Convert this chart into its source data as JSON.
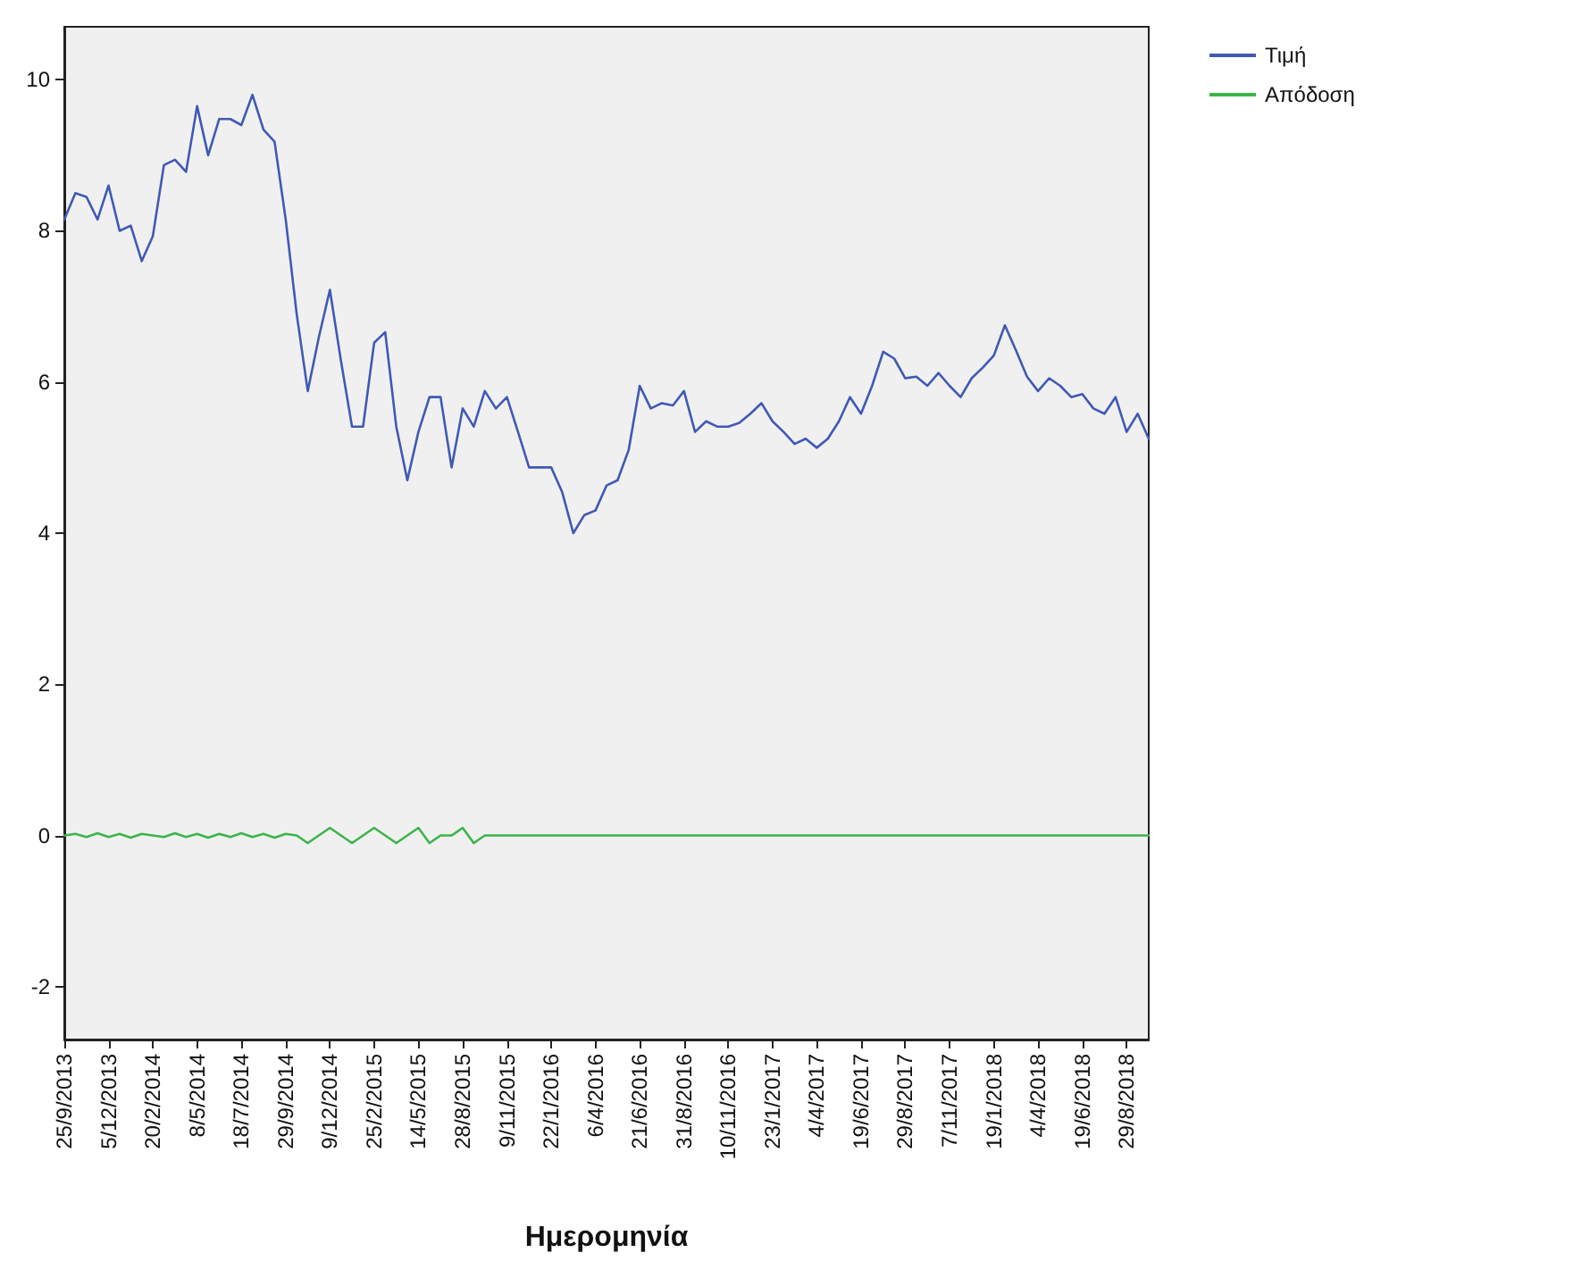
{
  "chart_data": {
    "type": "line",
    "xlabel": "Ημερομηνία",
    "categories": [
      "25/9/2013",
      null,
      null,
      null,
      "5/12/2013",
      null,
      null,
      null,
      "20/2/2014",
      null,
      null,
      null,
      "8/5/2014",
      null,
      null,
      null,
      "18/7/2014",
      null,
      null,
      null,
      "29/9/2014",
      null,
      null,
      null,
      "9/12/2014",
      null,
      null,
      null,
      "25/2/2015",
      null,
      null,
      null,
      "14/5/2015",
      null,
      null,
      null,
      "28/8/2015",
      null,
      null,
      null,
      "9/11/2015",
      null,
      null,
      null,
      "22/1/2016",
      null,
      null,
      null,
      "6/4/2016",
      null,
      null,
      null,
      "21/6/2016",
      null,
      null,
      null,
      "31/8/2016",
      null,
      null,
      null,
      "10/11/2016",
      null,
      null,
      null,
      "23/1/2017",
      null,
      null,
      null,
      "4/4/2017",
      null,
      null,
      null,
      "19/6/2017",
      null,
      null,
      null,
      "29/8/2017",
      null,
      null,
      null,
      "7/11/2017",
      null,
      null,
      null,
      "19/1/2018",
      null,
      null,
      null,
      "4/4/2018",
      null,
      null,
      null,
      "19/6/2018",
      null,
      null,
      null,
      "29/8/2018",
      null,
      null
    ],
    "series": [
      {
        "name": "Τιμή",
        "color": "#4059b5",
        "values": [
          8.15,
          8.5,
          8.45,
          8.15,
          8.6,
          8.0,
          8.07,
          7.6,
          7.93,
          8.87,
          8.94,
          8.78,
          9.65,
          9.0,
          9.48,
          9.48,
          9.4,
          9.8,
          9.34,
          9.18,
          8.16,
          6.9,
          5.88,
          6.59,
          7.22,
          6.28,
          5.41,
          5.41,
          6.52,
          6.66,
          5.41,
          4.7,
          5.34,
          5.8,
          5.8,
          4.87,
          5.65,
          5.41,
          5.88,
          5.65,
          5.8,
          5.34,
          4.87,
          4.87,
          4.87,
          4.54,
          4.0,
          4.24,
          4.3,
          4.63,
          4.7,
          5.1,
          5.95,
          5.65,
          5.72,
          5.69,
          5.88,
          5.34,
          5.48,
          5.41,
          5.41,
          5.46,
          5.58,
          5.72,
          5.48,
          5.34,
          5.18,
          5.25,
          5.13,
          5.25,
          5.48,
          5.8,
          5.58,
          5.95,
          6.4,
          6.31,
          6.05,
          6.07,
          5.95,
          6.12,
          5.95,
          5.8,
          6.05,
          6.19,
          6.35,
          6.75,
          6.42,
          6.07,
          5.88,
          6.05,
          5.95,
          5.8,
          5.84,
          5.65,
          5.58,
          5.8,
          5.34,
          5.58,
          5.25
        ]
      },
      {
        "name": "Απόδοση",
        "color": "#3cb44b",
        "values": [
          0,
          0.02,
          -0.02,
          0.03,
          -0.02,
          0.02,
          -0.03,
          0.02,
          0,
          -0.02,
          0.03,
          -0.02,
          0.02,
          -0.03,
          0.02,
          -0.02,
          0.03,
          -0.02,
          0.02,
          -0.03,
          0.02,
          0,
          -0.1,
          0,
          0.1,
          0,
          -0.1,
          0,
          0.1,
          0,
          -0.1,
          0,
          0.1,
          -0.1,
          0,
          0,
          0.1,
          -0.1,
          0,
          0,
          0,
          0,
          0,
          0,
          0,
          0,
          0,
          0,
          0,
          0,
          0,
          0,
          0,
          0,
          0,
          0,
          0,
          0,
          0,
          0,
          0,
          0,
          0,
          0,
          0,
          0,
          0,
          0,
          0,
          0,
          0,
          0,
          0,
          0,
          0,
          0,
          0,
          0,
          0,
          0,
          0,
          0,
          0,
          0,
          0,
          0,
          0,
          0,
          0,
          0,
          0,
          0,
          0,
          0,
          0,
          0,
          0,
          0,
          0
        ]
      }
    ],
    "ylim": [
      -2.7,
      10.7
    ],
    "yticks": [
      -2,
      0,
      2,
      4,
      6,
      8,
      10
    ],
    "grid": false,
    "legend": "top right",
    "marker": "none",
    "line_style": "solid"
  }
}
